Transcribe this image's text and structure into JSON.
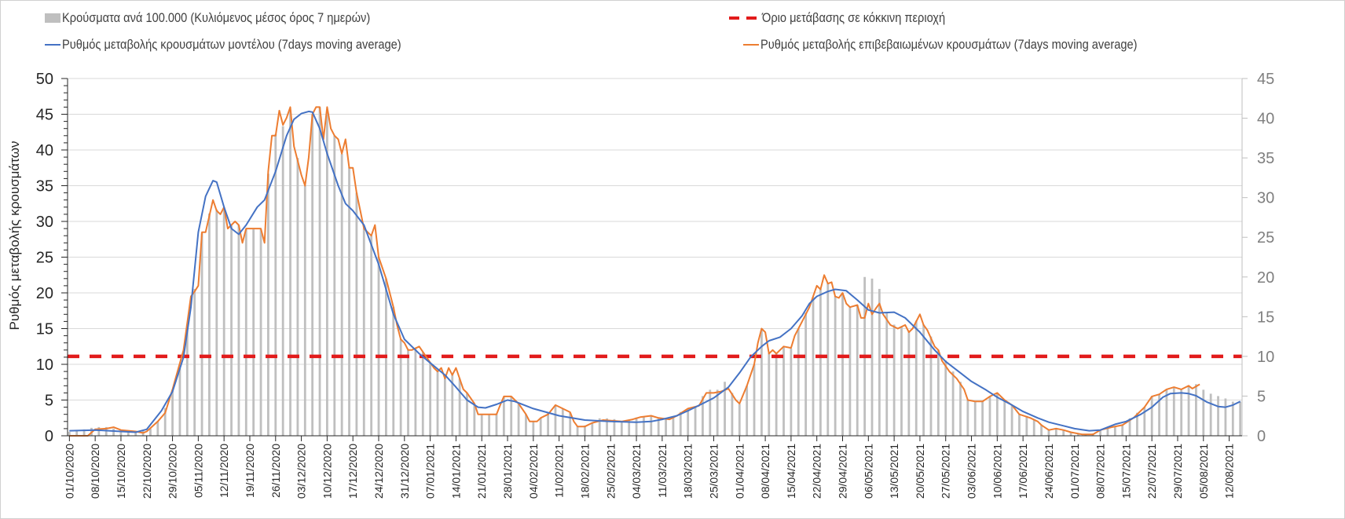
{
  "legend": {
    "bars": "Κρούσματα ανά 100.000 (Κυλιόμενος μέσος όρος 7 ημερών)",
    "model": "Ρυθμός μεταβολής κρουσμάτων μοντέλου (7days moving average)",
    "threshold": "Όριο μετάβασης σε κόκκινη περιοχή",
    "confirmed": "Ρυθμός μεταβολής επιβεβαιωμένων κρουσμάτων (7days moving average)"
  },
  "chart_data": {
    "type": "combo",
    "title": "",
    "xlabel": "",
    "ylabel": "Ρυθμός μεταβολής κρουσμάτων",
    "x_unit": "days since 01/10/2020",
    "x_range": [
      0,
      318
    ],
    "x_tick_labels": [
      "01/10/2020",
      "08/10/2020",
      "15/10/2020",
      "22/10/2020",
      "29/10/2020",
      "05/11/2020",
      "12/11/2020",
      "19/11/2020",
      "26/11/2020",
      "03/12/2020",
      "10/12/2020",
      "17/12/2020",
      "24/12/2020",
      "31/12/2020",
      "07/01/2021",
      "14/01/2021",
      "21/01/2021",
      "28/01/2021",
      "04/02/2021",
      "11/02/2021",
      "18/02/2021",
      "25/02/2021",
      "04/03/2021",
      "11/03/2021",
      "18/03/2021",
      "25/03/2021",
      "01/04/2021",
      "08/04/2021",
      "15/04/2021",
      "22/04/2021",
      "29/04/2021",
      "06/05/2021",
      "13/05/2021",
      "20/05/2021",
      "27/05/2021",
      "03/06/2021",
      "10/06/2021",
      "17/06/2021",
      "24/06/2021",
      "01/07/2021",
      "08/07/2021",
      "15/07/2021",
      "22/07/2021",
      "29/07/2021",
      "05/08/2021",
      "12/08/2021"
    ],
    "x_tick_step_days": 7,
    "y_left": {
      "range": [
        0,
        50
      ],
      "ticks": [
        "0",
        "5",
        "10",
        "15",
        "20",
        "25",
        "30",
        "35",
        "40",
        "45",
        "50"
      ]
    },
    "y_right": {
      "range": [
        0,
        45
      ],
      "ticks": [
        "0",
        "5",
        "10",
        "15",
        "20",
        "25",
        "30",
        "35",
        "40",
        "45"
      ]
    },
    "grid": true,
    "legend_position": "top",
    "colors": {
      "bars": "#bfbfbf",
      "model": "#4472c4",
      "confirmed": "#ed7d31",
      "threshold": "#e21b1b"
    },
    "bars": {
      "name": "Κρούσματα ανά 100.000 (Κυλιόμενος μέσος όρος 7 ημερών)",
      "axis": "right",
      "start_day": 0,
      "step_days": 2,
      "values": [
        0.5,
        0.6,
        0.8,
        1.0,
        1.1,
        1.1,
        0.9,
        0.7,
        0.6,
        0.5,
        0.6,
        0.9,
        1.8,
        3.5,
        5.8,
        8.5,
        14,
        18.5,
        25.5,
        28,
        28.5,
        28.8,
        26.5,
        26.5,
        26,
        26,
        26,
        33,
        38,
        39,
        41,
        35,
        31.5,
        40.5,
        41.4,
        41,
        37.8,
        35.5,
        33.8,
        30.6,
        26.1,
        25.2,
        22.5,
        19.8,
        16.2,
        12.2,
        10.8,
        11,
        10.5,
        9.2,
        8.1,
        7.2,
        7.7,
        7.2,
        5.4,
        4,
        2.7,
        2.7,
        2.8,
        4.9,
        4.9,
        4.0,
        2.7,
        1.8,
        2.2,
        2.9,
        3.8,
        3.4,
        2.9,
        1.2,
        1.3,
        1.6,
        2.2,
        2.2,
        2.1,
        1.8,
        2,
        2.3,
        2.4,
        2.5,
        2.3,
        2.1,
        2.4,
        3,
        3.4,
        3.7,
        5,
        5.8,
        5.8,
        6.8,
        5.4,
        4,
        6.3,
        9,
        13.5,
        10.4,
        10.4,
        11.3,
        11,
        13.5,
        15.5,
        17.5,
        18.5,
        19.2,
        17.6,
        18,
        16.2,
        16.5,
        20,
        19.8,
        18.5,
        15.5,
        14,
        13.8,
        13.2,
        14.5,
        14,
        12.5,
        10.8,
        9.5,
        8.1,
        6.8,
        4.5,
        4.3,
        4.3,
        5,
        5.4,
        4.5,
        3.9,
        2.7,
        2.5,
        2,
        1.4,
        0.8,
        0.9,
        0.7,
        0.5,
        0.2,
        0.2,
        0.3,
        0.7,
        1.0,
        1.2,
        1.4,
        2.2,
        2.9,
        3.6,
        5,
        5.2,
        5.9,
        6.1,
        5.9,
        6.3,
        6.5,
        5.8,
        5.3,
        5,
        4.7,
        4.3,
        4.3
      ]
    },
    "model": {
      "name": "Ρυθμός μεταβολής κρουσμάτων μοντέλου (7days moving average)",
      "axis": "left",
      "points": [
        [
          0,
          0.7
        ],
        [
          7,
          0.8
        ],
        [
          14,
          0.6
        ],
        [
          18,
          0.5
        ],
        [
          21,
          0.9
        ],
        [
          25,
          3.5
        ],
        [
          28,
          6.2
        ],
        [
          31,
          11
        ],
        [
          33,
          18
        ],
        [
          35,
          28.5
        ],
        [
          37,
          33.5
        ],
        [
          39,
          35.7
        ],
        [
          40,
          35.5
        ],
        [
          42,
          32
        ],
        [
          44,
          29
        ],
        [
          46,
          28.2
        ],
        [
          48,
          29.5
        ],
        [
          51,
          32
        ],
        [
          53,
          33
        ],
        [
          56,
          37
        ],
        [
          59,
          42
        ],
        [
          61,
          44.3
        ],
        [
          63,
          45.1
        ],
        [
          65,
          45.4
        ],
        [
          66,
          45.3
        ],
        [
          68,
          43
        ],
        [
          70,
          39.5
        ],
        [
          73,
          35
        ],
        [
          75,
          32.5
        ],
        [
          77,
          31.5
        ],
        [
          80,
          29.5
        ],
        [
          84,
          24
        ],
        [
          88,
          17
        ],
        [
          91,
          13.5
        ],
        [
          95,
          11.5
        ],
        [
          98,
          10.2
        ],
        [
          102,
          8.5
        ],
        [
          105,
          6.8
        ],
        [
          108,
          5
        ],
        [
          111,
          4
        ],
        [
          113,
          3.9
        ],
        [
          116,
          4.4
        ],
        [
          119,
          5
        ],
        [
          121,
          4.8
        ],
        [
          126,
          3.8
        ],
        [
          133,
          2.8
        ],
        [
          140,
          2.2
        ],
        [
          147,
          2
        ],
        [
          154,
          1.9
        ],
        [
          158,
          2
        ],
        [
          161,
          2.3
        ],
        [
          165,
          2.8
        ],
        [
          168,
          3.5
        ],
        [
          172,
          4.5
        ],
        [
          175,
          5.3
        ],
        [
          179,
          6.8
        ],
        [
          182,
          8.8
        ],
        [
          185,
          11
        ],
        [
          188,
          12.5
        ],
        [
          190,
          13.3
        ],
        [
          193,
          13.8
        ],
        [
          196,
          15
        ],
        [
          199,
          16.8
        ],
        [
          201,
          18.5
        ],
        [
          203,
          19.5
        ],
        [
          206,
          20.2
        ],
        [
          208,
          20.5
        ],
        [
          211,
          20.3
        ],
        [
          214,
          19
        ],
        [
          217,
          17.6
        ],
        [
          220,
          17.2
        ],
        [
          224,
          17.3
        ],
        [
          227,
          16.5
        ],
        [
          231,
          14.5
        ],
        [
          235,
          12
        ],
        [
          238,
          10.4
        ],
        [
          242,
          8.8
        ],
        [
          245,
          7.6
        ],
        [
          249,
          6.4
        ],
        [
          252,
          5.4
        ],
        [
          256,
          4.3
        ],
        [
          259,
          3.4
        ],
        [
          263,
          2.5
        ],
        [
          266,
          1.9
        ],
        [
          270,
          1.4
        ],
        [
          273,
          1.0
        ],
        [
          277,
          0.7
        ],
        [
          280,
          0.8
        ],
        [
          284,
          1.6
        ],
        [
          287,
          2
        ],
        [
          291,
          3
        ],
        [
          294,
          4
        ],
        [
          297,
          5.4
        ],
        [
          299,
          5.9
        ],
        [
          302,
          6.0
        ],
        [
          304,
          5.9
        ],
        [
          306,
          5.6
        ],
        [
          309,
          4.7
        ],
        [
          312,
          4.1
        ],
        [
          314,
          4.0
        ],
        [
          316,
          4.3
        ],
        [
          318,
          4.8
        ]
      ]
    },
    "confirmed": {
      "name": "Ρυθμός μεταβολής επιβεβαιωμένων κρουσμάτων (7days moving average)",
      "axis": "left",
      "points": [
        [
          0,
          0
        ],
        [
          5,
          0
        ],
        [
          7,
          0.9
        ],
        [
          10,
          1
        ],
        [
          12,
          1.2
        ],
        [
          14,
          0.8
        ],
        [
          18,
          0.6
        ],
        [
          20,
          0.4
        ],
        [
          21,
          0.6
        ],
        [
          24,
          2
        ],
        [
          26,
          3.2
        ],
        [
          28,
          6.5
        ],
        [
          31,
          12
        ],
        [
          33,
          19.5
        ],
        [
          34,
          20.2
        ],
        [
          35,
          21
        ],
        [
          36,
          28.5
        ],
        [
          37,
          28.5
        ],
        [
          39,
          33
        ],
        [
          40,
          31.5
        ],
        [
          41,
          31
        ],
        [
          42,
          32
        ],
        [
          43,
          29
        ],
        [
          45,
          30
        ],
        [
          46,
          29.5
        ],
        [
          47,
          27
        ],
        [
          48,
          29
        ],
        [
          52,
          29
        ],
        [
          53,
          27
        ],
        [
          54,
          37
        ],
        [
          55,
          42
        ],
        [
          56,
          42
        ],
        [
          57,
          45.5
        ],
        [
          58,
          43.5
        ],
        [
          59,
          44.5
        ],
        [
          60,
          46
        ],
        [
          61,
          40.5
        ],
        [
          63,
          36.5
        ],
        [
          64,
          35
        ],
        [
          65,
          39
        ],
        [
          66,
          45
        ],
        [
          67,
          46
        ],
        [
          68,
          46
        ],
        [
          69,
          41.5
        ],
        [
          70,
          46
        ],
        [
          71,
          43
        ],
        [
          72,
          42
        ],
        [
          73,
          41.5
        ],
        [
          74,
          39.5
        ],
        [
          75,
          41.5
        ],
        [
          76,
          37.5
        ],
        [
          77,
          37.5
        ],
        [
          78,
          34
        ],
        [
          80,
          29
        ],
        [
          81,
          28.5
        ],
        [
          82,
          28
        ],
        [
          83,
          29.5
        ],
        [
          84,
          25
        ],
        [
          86,
          22
        ],
        [
          88,
          18
        ],
        [
          89,
          15.5
        ],
        [
          90,
          13.5
        ],
        [
          91,
          13
        ],
        [
          92,
          12
        ],
        [
          93,
          12
        ],
        [
          95,
          12.5
        ],
        [
          97,
          11
        ],
        [
          99,
          9.5
        ],
        [
          100,
          9
        ],
        [
          101,
          9.5
        ],
        [
          102,
          8
        ],
        [
          103,
          9.5
        ],
        [
          104,
          8.5
        ],
        [
          105,
          9.5
        ],
        [
          106,
          8
        ],
        [
          107,
          6.5
        ],
        [
          108,
          6
        ],
        [
          110,
          4.5
        ],
        [
          111,
          3
        ],
        [
          114,
          3
        ],
        [
          116,
          3
        ],
        [
          117,
          4.3
        ],
        [
          118,
          5.5
        ],
        [
          120,
          5.5
        ],
        [
          121,
          5
        ],
        [
          122,
          4.5
        ],
        [
          124,
          3
        ],
        [
          125,
          2
        ],
        [
          127,
          2
        ],
        [
          128,
          2.5
        ],
        [
          130,
          3
        ],
        [
          132,
          4.3
        ],
        [
          134,
          3.8
        ],
        [
          136,
          3.3
        ],
        [
          137,
          2
        ],
        [
          138,
          1.3
        ],
        [
          140,
          1.3
        ],
        [
          142,
          1.8
        ],
        [
          145,
          2.2
        ],
        [
          150,
          2
        ],
        [
          153,
          2.3
        ],
        [
          155,
          2.6
        ],
        [
          158,
          2.8
        ],
        [
          160,
          2.5
        ],
        [
          163,
          2.3
        ],
        [
          165,
          2.8
        ],
        [
          168,
          3.8
        ],
        [
          171,
          4.2
        ],
        [
          173,
          6
        ],
        [
          175,
          6
        ],
        [
          177,
          6.2
        ],
        [
          179,
          6.6
        ],
        [
          181,
          5
        ],
        [
          182,
          4.5
        ],
        [
          184,
          7
        ],
        [
          186,
          10
        ],
        [
          187,
          13
        ],
        [
          188,
          15
        ],
        [
          189,
          14.5
        ],
        [
          190,
          11.5
        ],
        [
          191,
          12
        ],
        [
          192,
          11.5
        ],
        [
          194,
          12.5
        ],
        [
          196,
          12.3
        ],
        [
          197,
          14
        ],
        [
          199,
          16
        ],
        [
          201,
          18
        ],
        [
          202,
          19.5
        ],
        [
          203,
          21
        ],
        [
          204,
          20.5
        ],
        [
          205,
          22.5
        ],
        [
          206,
          21.3
        ],
        [
          207,
          21.5
        ],
        [
          208,
          19.5
        ],
        [
          209,
          19.3
        ],
        [
          210,
          20
        ],
        [
          211,
          18.5
        ],
        [
          212,
          18
        ],
        [
          214,
          18.3
        ],
        [
          215,
          16.5
        ],
        [
          216,
          16.5
        ],
        [
          217,
          18.5
        ],
        [
          218,
          17
        ],
        [
          219,
          17.8
        ],
        [
          220,
          18.5
        ],
        [
          221,
          17
        ],
        [
          223,
          15.5
        ],
        [
          225,
          15
        ],
        [
          227,
          15.5
        ],
        [
          228,
          14.5
        ],
        [
          229,
          15
        ],
        [
          231,
          17
        ],
        [
          232,
          15.5
        ],
        [
          233,
          14.8
        ],
        [
          235,
          12.5
        ],
        [
          236,
          12
        ],
        [
          237,
          10.5
        ],
        [
          239,
          9
        ],
        [
          241,
          8
        ],
        [
          243,
          6.5
        ],
        [
          244,
          5
        ],
        [
          246,
          4.8
        ],
        [
          248,
          4.8
        ],
        [
          250,
          5.5
        ],
        [
          252,
          6
        ],
        [
          254,
          5
        ],
        [
          256,
          4.3
        ],
        [
          258,
          3
        ],
        [
          261,
          2.5
        ],
        [
          263,
          2
        ],
        [
          264,
          1.5
        ],
        [
          266,
          0.8
        ],
        [
          268,
          1
        ],
        [
          270,
          0.8
        ],
        [
          272,
          0.5
        ],
        [
          275,
          0.2
        ],
        [
          278,
          0.2
        ],
        [
          280,
          0.8
        ],
        [
          283,
          1.2
        ],
        [
          286,
          1.5
        ],
        [
          289,
          2.5
        ],
        [
          292,
          4
        ],
        [
          294,
          5.5
        ],
        [
          296,
          5.8
        ],
        [
          298,
          6.5
        ],
        [
          300,
          6.8
        ],
        [
          302,
          6.5
        ],
        [
          304,
          7
        ],
        [
          305,
          6.6
        ],
        [
          307,
          7.2
        ]
      ]
    },
    "threshold": {
      "name": "Όριο μετάβασης σε κόκκινη περιοχή",
      "axis": "right",
      "value": 10
    }
  }
}
